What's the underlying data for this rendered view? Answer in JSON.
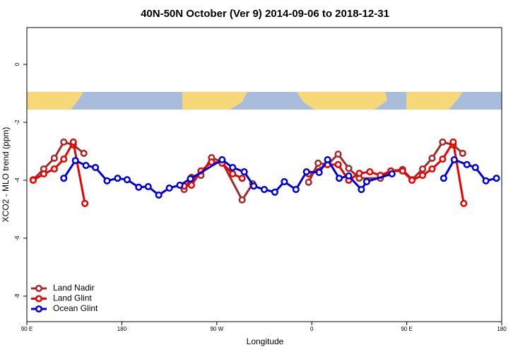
{
  "chart_data": {
    "type": "line",
    "title": "40N-50N October (Ver 9)   2014-09-06 to 2018-12-31",
    "x_label": "Longitude",
    "y_label": "XCO2 - MLO trend (ppm)",
    "xlim": [
      90,
      540
    ],
    "ylim": [
      -8.88,
      1.27
    ],
    "xticks": [
      {
        "value": 90,
        "label": "90 E"
      },
      180,
      {
        "value": 270,
        "label": "90 W"
      },
      {
        "value": 360,
        "label": "0"
      },
      {
        "value": 450,
        "label": "90 E"
      },
      {
        "value": 540,
        "label": "180"
      }
    ],
    "yticks": [
      0,
      -2,
      -4,
      -6,
      -8
    ],
    "legend": "bottom-left",
    "series": [
      {
        "name": "Land Nadir",
        "color": "#a52a2a",
        "x": [
          96,
          106,
          116,
          125,
          134,
          144,
          239,
          246,
          255,
          265,
          275,
          294,
          304,
          357,
          366,
          375,
          385,
          395,
          405,
          425,
          435,
          446,
          455,
          465,
          474,
          484,
          494,
          503
        ],
        "values": [
          -3.98,
          -3.61,
          -3.24,
          -2.68,
          -2.78,
          -3.07,
          -4.32,
          -3.9,
          -3.83,
          -3.22,
          -3.37,
          -4.68,
          -4.12,
          -4.07,
          -3.41,
          -3.46,
          -3.1,
          -3.59,
          -3.93,
          -3.93,
          -3.68,
          -3.63,
          -3.98,
          -3.61,
          -3.24,
          -2.68,
          -2.78,
          -3.07
        ]
      },
      {
        "name": "Land Glint",
        "color": "#ee0000",
        "x": [
          96,
          106,
          116,
          125,
          134,
          145,
          239,
          246,
          255,
          265,
          275,
          285,
          294,
          357,
          375,
          385,
          395,
          405,
          415,
          425,
          435,
          446,
          455,
          465,
          474,
          484,
          494,
          504
        ],
        "values": [
          -4.0,
          -3.78,
          -3.61,
          -3.27,
          -2.68,
          -4.8,
          -4.2,
          -4.17,
          -3.68,
          -3.37,
          -3.41,
          -3.78,
          -3.93,
          -3.78,
          -3.46,
          -3.46,
          -4.0,
          -3.76,
          -3.71,
          -3.83,
          -3.68,
          -3.68,
          -4.0,
          -3.83,
          -3.61,
          -3.27,
          -2.68,
          -4.8
        ]
      },
      {
        "name": "Ocean Glint",
        "color": "#0000dd",
        "x": [
          125,
          136,
          146,
          155,
          166,
          176,
          185,
          196,
          205,
          215,
          225,
          235,
          245,
          275,
          285,
          296,
          305,
          315,
          325,
          334,
          345,
          355,
          367,
          375,
          386,
          395,
          407,
          412,
          436,
          485,
          495,
          507,
          515,
          525,
          535
        ],
        "values": [
          -3.93,
          -3.32,
          -3.49,
          -3.56,
          -4.02,
          -3.93,
          -3.98,
          -4.24,
          -4.22,
          -4.51,
          -4.27,
          -4.17,
          -3.95,
          -3.29,
          -3.56,
          -3.71,
          -4.2,
          -4.32,
          -4.41,
          -4.05,
          -4.32,
          -3.71,
          -3.73,
          -3.29,
          -3.93,
          -3.85,
          -4.32,
          -4.05,
          -3.78,
          -3.93,
          -3.29,
          -3.46,
          -3.56,
          -4.02,
          -3.93
        ]
      }
    ]
  }
}
